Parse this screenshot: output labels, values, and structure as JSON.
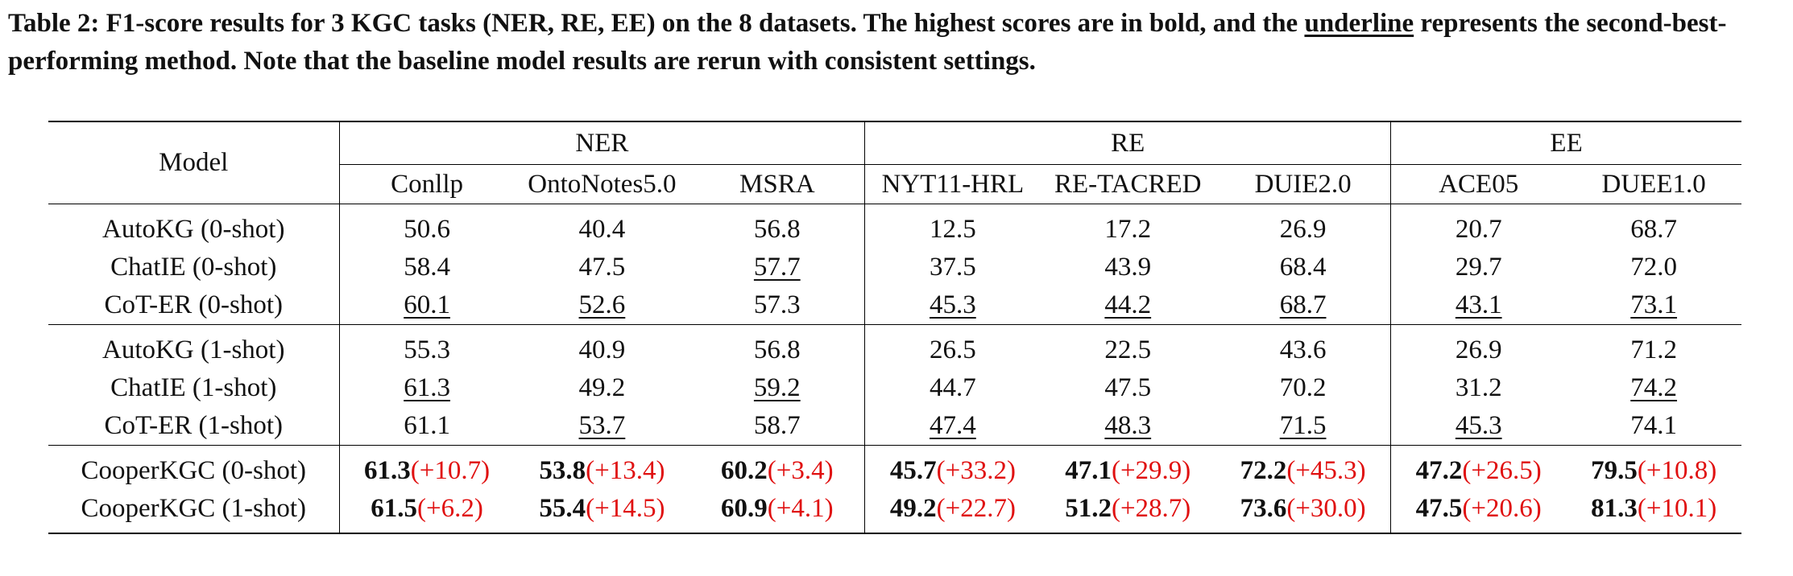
{
  "caption": {
    "part1": "Table 2: F1-score results for 3 KGC tasks (NER, RE, EE) on the 8 datasets. The highest scores are in bold, and the ",
    "underline_word": "underline",
    "part2": " represents the second-best-performing method. Note that the baseline model results are rerun with consistent settings."
  },
  "header": {
    "model": "Model",
    "groups": [
      "NER",
      "RE",
      "EE"
    ],
    "datasets": [
      "Conllp",
      "OntoNotes5.0",
      "MSRA",
      "NYT11-HRL",
      "RE-TACRED",
      "DUIE2.0",
      "ACE05",
      "DUEE1.0"
    ]
  },
  "blocks": [
    {
      "rows": [
        {
          "model": "AutoKG (0-shot)",
          "values": [
            "50.6",
            "40.4",
            "56.8",
            "12.5",
            "17.2",
            "26.9",
            "20.7",
            "68.7"
          ]
        },
        {
          "model": "ChatIE (0-shot)",
          "values": [
            "58.4",
            "47.5",
            "57.7",
            "37.5",
            "43.9",
            "68.4",
            "29.7",
            "72.0"
          ]
        },
        {
          "model": "CoT-ER (0-shot)",
          "values": [
            "60.1",
            "52.6",
            "57.3",
            "45.3",
            "44.2",
            "68.7",
            "43.1",
            "73.1"
          ]
        }
      ]
    },
    {
      "rows": [
        {
          "model": "AutoKG (1-shot)",
          "values": [
            "55.3",
            "40.9",
            "56.8",
            "26.5",
            "22.5",
            "43.6",
            "26.9",
            "71.2"
          ]
        },
        {
          "model": "ChatIE (1-shot)",
          "values": [
            "61.3",
            "49.2",
            "59.2",
            "44.7",
            "47.5",
            "70.2",
            "31.2",
            "74.2"
          ]
        },
        {
          "model": "CoT-ER (1-shot)",
          "values": [
            "61.1",
            "53.7",
            "58.7",
            "47.4",
            "48.3",
            "71.5",
            "45.3",
            "74.1"
          ]
        }
      ]
    },
    {
      "rows": [
        {
          "model": "CooperKGC (0-shot)",
          "values": [
            "61.3",
            "53.8",
            "60.2",
            "45.7",
            "47.1",
            "72.2",
            "47.2",
            "79.5"
          ],
          "gains": [
            "(+10.7)",
            "(+13.4)",
            "(+3.4)",
            "(+33.2)",
            "(+29.9)",
            "(+45.3)",
            "(+26.5)",
            "(+10.8)"
          ]
        },
        {
          "model": "CooperKGC (1-shot)",
          "values": [
            "61.5",
            "55.4",
            "60.9",
            "49.2",
            "51.2",
            "73.6",
            "47.5",
            "81.3"
          ],
          "gains": [
            "(+6.2)",
            "(+14.5)",
            "(+4.1)",
            "(+22.7)",
            "(+28.7)",
            "(+30.0)",
            "(+20.6)",
            "(+10.1)"
          ]
        }
      ]
    }
  ],
  "underlined": [
    [
      0,
      2,
      0
    ],
    [
      0,
      2,
      1
    ],
    [
      0,
      2,
      3
    ],
    [
      0,
      2,
      4
    ],
    [
      0,
      2,
      5
    ],
    [
      0,
      2,
      6
    ],
    [
      0,
      2,
      7
    ],
    [
      0,
      1,
      2
    ],
    [
      1,
      1,
      0
    ],
    [
      1,
      1,
      2
    ],
    [
      1,
      1,
      7
    ],
    [
      1,
      2,
      1
    ],
    [
      1,
      2,
      3
    ],
    [
      1,
      2,
      4
    ],
    [
      1,
      2,
      5
    ],
    [
      1,
      2,
      6
    ]
  ],
  "colors": {
    "gain": "#e01010",
    "text": "#111111"
  }
}
